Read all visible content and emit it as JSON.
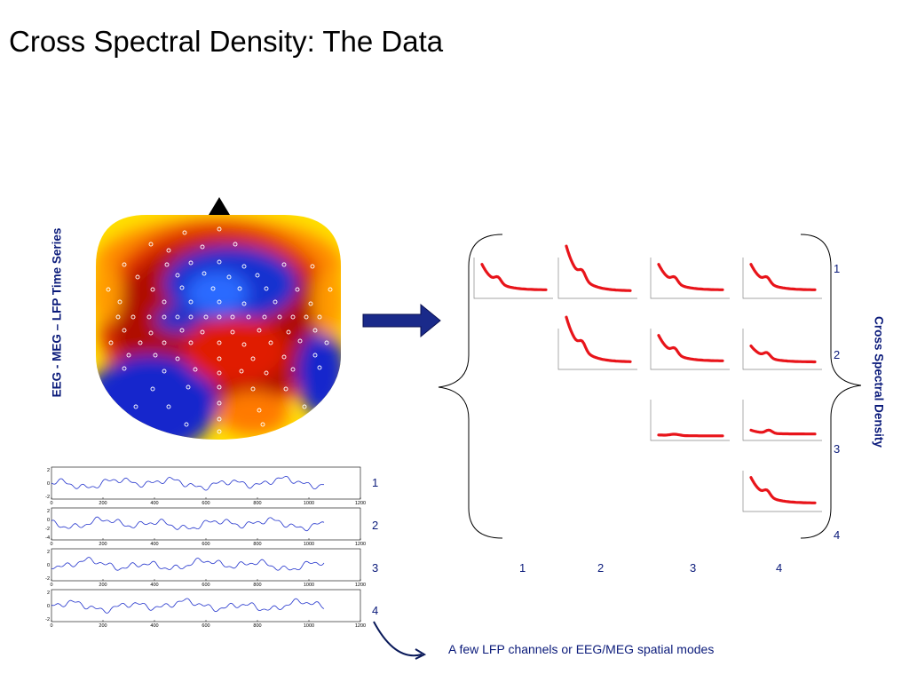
{
  "slide": {
    "title": "Cross Spectral Density: The Data",
    "left_axis_label": "EEG - MEG – LFP Time Series",
    "right_axis_label": "Cross Spectral Density",
    "caption": "A few LFP channels or EEG/MEG spatial modes"
  },
  "colors": {
    "title": "#000000",
    "label_blue": "#0a1a7a",
    "trace_blue": "#2233cc",
    "csd_red": "#e8141a",
    "arrow_fill": "#1a2a8a",
    "scalp_blue": "#1a1acc",
    "scalp_red": "#cc1a00",
    "scalp_yellow": "#ffe000"
  },
  "icons": {
    "nose_marker": "black-triangle-icon",
    "flow_arrow": "right-arrow-icon",
    "caption_arrow": "curved-arrow-icon"
  },
  "time_series": {
    "x_ticks": [
      "0",
      "200",
      "400",
      "600",
      "800",
      "1000",
      "1200"
    ],
    "channels": [
      {
        "label": "1",
        "y_ticks": [
          "2",
          "0",
          "-2"
        ]
      },
      {
        "label": "2",
        "y_ticks": [
          "2",
          "0",
          "-2",
          "-4"
        ]
      },
      {
        "label": "3",
        "y_ticks": [
          "2",
          "0",
          "-2"
        ]
      },
      {
        "label": "4",
        "y_ticks": [
          "2",
          "0",
          "-2"
        ]
      }
    ]
  },
  "csd_matrix": {
    "column_labels": [
      "1",
      "2",
      "3",
      "4"
    ],
    "row_labels": [
      "1",
      "2",
      "3",
      "4"
    ]
  }
}
